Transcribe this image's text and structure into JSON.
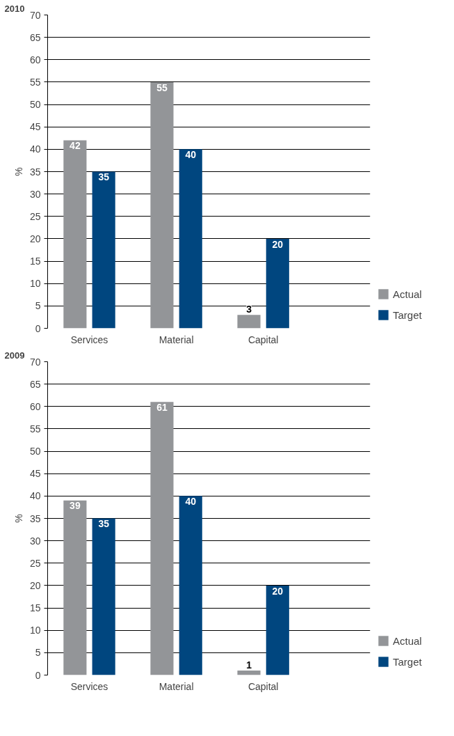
{
  "chart_data": [
    {
      "type": "bar",
      "title": "2010",
      "ylabel": "%",
      "categories": [
        "Services",
        "Material",
        "Capital"
      ],
      "series": [
        {
          "name": "Actual",
          "color": "#939598",
          "values": [
            42,
            55,
            3
          ]
        },
        {
          "name": "Target",
          "color": "#00467f",
          "values": [
            35,
            40,
            20
          ]
        }
      ],
      "ylim": [
        0,
        70
      ],
      "yticks": [
        0,
        5,
        10,
        15,
        20,
        25,
        30,
        35,
        40,
        45,
        50,
        55,
        60,
        65,
        70
      ],
      "grid": "y",
      "legend": "bottom right",
      "data_labels": true
    },
    {
      "type": "bar",
      "title": "2009",
      "ylabel": "%",
      "categories": [
        "Services",
        "Material",
        "Capital"
      ],
      "series": [
        {
          "name": "Actual",
          "color": "#939598",
          "values": [
            39,
            61,
            1
          ]
        },
        {
          "name": "Target",
          "color": "#00467f",
          "values": [
            35,
            40,
            20
          ]
        }
      ],
      "ylim": [
        0,
        70
      ],
      "yticks": [
        0,
        5,
        10,
        15,
        20,
        25,
        30,
        35,
        40,
        45,
        50,
        55,
        60,
        65,
        70
      ],
      "grid": "y",
      "legend": "bottom right",
      "data_labels": true
    }
  ]
}
